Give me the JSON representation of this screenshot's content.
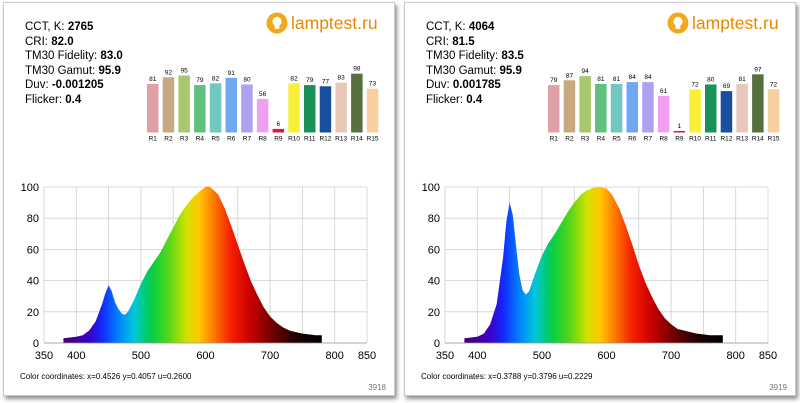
{
  "brand": {
    "name": "lamptest.ru",
    "logo_icon": "lightbulb-icon"
  },
  "chart_data": [
    {
      "type": "composite",
      "params": [
        {
          "label": "CCT, K: ",
          "value": "2765"
        },
        {
          "label": "CRI: ",
          "value": "82.0"
        },
        {
          "label": "TM30 Fidelity: ",
          "value": "83.0"
        },
        {
          "label": "TM30 Gamut: ",
          "value": "95.9"
        },
        {
          "label": "Duv: ",
          "value": "-0.001205"
        },
        {
          "label": "Flicker: ",
          "value": "0.4"
        }
      ],
      "cri_bars": {
        "type": "bar",
        "categories": [
          "R1",
          "R2",
          "R3",
          "R4",
          "R5",
          "R6",
          "R7",
          "R8",
          "R9",
          "R10",
          "R11",
          "R12",
          "R13",
          "R14",
          "R15"
        ],
        "values": [
          81,
          92,
          95,
          79,
          82,
          91,
          80,
          56,
          6,
          82,
          79,
          77,
          83,
          98,
          73
        ],
        "colors": [
          "#e0a0a8",
          "#c8a880",
          "#a8c870",
          "#60c080",
          "#70c8c0",
          "#70a8f0",
          "#b0a0f0",
          "#f0a0f0",
          "#e01830",
          "#f8f038",
          "#189058",
          "#1850a0",
          "#e8c8b8",
          "#587040",
          "#f8d0a0"
        ]
      },
      "spectrum": {
        "type": "area",
        "xlim": [
          350,
          850
        ],
        "ylim": [
          0,
          100
        ],
        "xticks": [
          350,
          400,
          450,
          500,
          550,
          600,
          650,
          700,
          750,
          800,
          850
        ],
        "xtick_labels": [
          "350",
          "400",
          "",
          "500",
          "",
          "600",
          "",
          "700",
          "",
          "800",
          "850"
        ],
        "yticks": [
          0,
          20,
          40,
          60,
          80,
          100
        ],
        "grid": true,
        "x": [
          380,
          390,
          400,
          410,
          420,
          430,
          440,
          445,
          450,
          455,
          460,
          465,
          470,
          475,
          480,
          490,
          500,
          510,
          520,
          530,
          540,
          550,
          560,
          570,
          580,
          590,
          600,
          605,
          610,
          620,
          630,
          640,
          650,
          660,
          670,
          680,
          690,
          700,
          710,
          720,
          730,
          740,
          750,
          760,
          770,
          780
        ],
        "y": [
          3,
          3.5,
          4,
          5,
          8,
          14,
          25,
          32,
          37,
          33,
          26,
          22,
          19,
          18,
          20,
          28,
          38,
          46,
          52,
          58,
          66,
          74,
          82,
          88,
          93,
          97,
          100,
          100.5,
          99,
          95,
          86,
          75,
          63,
          51,
          40,
          31,
          23,
          17,
          13,
          10,
          8,
          7,
          6,
          5.5,
          5,
          5
        ]
      },
      "coordinates": "Color coordinates:  x=0.4526 y=0.4057 u=0.2600",
      "image_id": "3918"
    },
    {
      "type": "composite",
      "params": [
        {
          "label": "CCT, K: ",
          "value": "4064"
        },
        {
          "label": "CRI: ",
          "value": "81.5"
        },
        {
          "label": "TM30 Fidelity: ",
          "value": "83.5"
        },
        {
          "label": "TM30 Gamut: ",
          "value": "95.9"
        },
        {
          "label": "Duv: ",
          "value": "0.001785"
        },
        {
          "label": "Flicker: ",
          "value": "0.4"
        }
      ],
      "cri_bars": {
        "type": "bar",
        "categories": [
          "R1",
          "R2",
          "R3",
          "R4",
          "R5",
          "R6",
          "R7",
          "R8",
          "R9",
          "R10",
          "R11",
          "R12",
          "R13",
          "R14",
          "R15"
        ],
        "values": [
          79,
          87,
          94,
          81,
          81,
          84,
          84,
          61,
          1,
          72,
          80,
          69,
          81,
          97,
          72
        ],
        "colors": [
          "#e0a0a8",
          "#c8a880",
          "#a8c870",
          "#60c080",
          "#70c8c0",
          "#70a8f0",
          "#b0a0f0",
          "#f0a0f0",
          "#e01830",
          "#f8f038",
          "#189058",
          "#1850a0",
          "#e8c8b8",
          "#587040",
          "#f8d0a0"
        ]
      },
      "spectrum": {
        "type": "area",
        "xlim": [
          350,
          850
        ],
        "ylim": [
          0,
          100
        ],
        "xticks": [
          350,
          400,
          450,
          500,
          550,
          600,
          650,
          700,
          750,
          800,
          850
        ],
        "xtick_labels": [
          "350",
          "400",
          "",
          "500",
          "",
          "600",
          "",
          "700",
          "",
          "800",
          "850"
        ],
        "yticks": [
          0,
          20,
          40,
          60,
          80,
          100
        ],
        "grid": true,
        "x": [
          380,
          390,
          400,
          410,
          420,
          430,
          440,
          445,
          450,
          455,
          460,
          465,
          470,
          475,
          480,
          490,
          500,
          510,
          520,
          530,
          540,
          550,
          560,
          570,
          580,
          590,
          600,
          605,
          610,
          620,
          630,
          640,
          650,
          660,
          670,
          680,
          690,
          700,
          710,
          720,
          730,
          740,
          750,
          760,
          770,
          780
        ],
        "y": [
          3,
          3.5,
          4,
          6,
          12,
          25,
          55,
          78,
          90,
          82,
          62,
          44,
          34,
          31,
          33,
          45,
          56,
          64,
          70,
          77,
          84,
          90,
          95,
          98,
          99.5,
          100,
          99,
          97,
          94,
          86,
          75,
          63,
          50,
          39,
          30,
          22,
          16,
          12,
          9,
          8,
          7,
          6,
          5.5,
          5,
          5,
          5
        ]
      },
      "coordinates": "Color coordinates:  x=0.3788 y=0.3796 u=0.2229",
      "image_id": "3919"
    }
  ]
}
